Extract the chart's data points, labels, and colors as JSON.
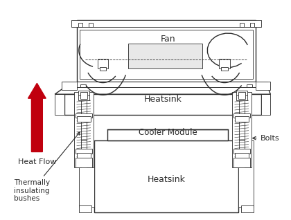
{
  "bg_color": "#ffffff",
  "line_color": "#2a2a2a",
  "arrow_color": "#c0000e",
  "lw": 1.0,
  "thin_lw": 0.6,
  "labels": {
    "fan": "Fan",
    "heatsink_top": "Heatsink",
    "cooler_module": "Cooler Module",
    "heatsink_bottom": "Heatsink",
    "heat_flow": "Heat Flow",
    "thermally": "Thermally\ninsulating\nbushes",
    "bolts": "Bolts"
  },
  "figsize": [
    4.2,
    3.18
  ],
  "dpi": 100
}
